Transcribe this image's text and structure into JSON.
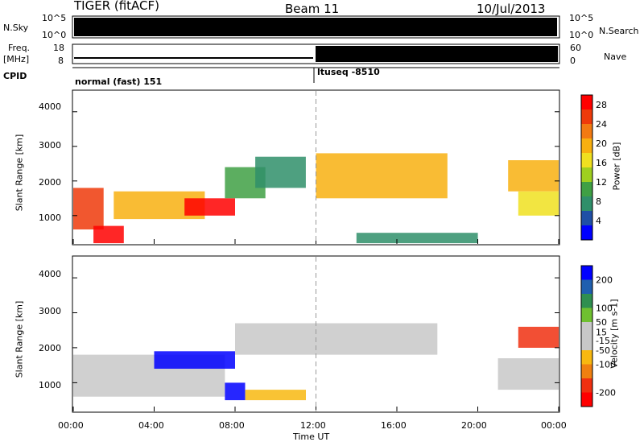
{
  "header": {
    "radar": "TIGER (fitACF)",
    "beam": "Beam 11",
    "date": "10/Jul/2013"
  },
  "top_labels": {
    "nsky": "N.Sky",
    "freq": "Freq.",
    "mhz": "[MHz]",
    "cpid": "CPID",
    "nsearch": "N.Search",
    "nave": "Nave",
    "noise_ticks_left": [
      "10^5",
      "10^0"
    ],
    "noise_ticks_right": [
      "10^5",
      "10^0"
    ],
    "freq_ticks": [
      "18",
      "8"
    ],
    "nave_ticks": [
      "60",
      "0"
    ],
    "cpid_first": "normal (fast) 151",
    "cpid_second": "ltuseq -8510"
  },
  "colors": {
    "power": [
      "#0000ff",
      "#1f4fa6",
      "#2f8f6a",
      "#3fa044",
      "#9fcf1f",
      "#f0e020",
      "#f8b010",
      "#f27a12",
      "#ee3a0a",
      "#ff0000"
    ],
    "velocity": [
      "#ff0000",
      "#f03010",
      "#f08010",
      "#f8b810",
      "#c8c8c8",
      "#c8c8c8",
      "#6fc030",
      "#2f8f50",
      "#1f5faf",
      "#0000ff"
    ]
  },
  "chart_data": [
    {
      "type": "heatmap",
      "name": "power",
      "title": "",
      "xlabel": "",
      "ylabel": "Slant Range [km]",
      "x_ticks": [
        "00:00",
        "04:00",
        "08:00",
        "12:00",
        "16:00",
        "20:00",
        "00:00"
      ],
      "x_range": [
        "00:00",
        "24:00"
      ],
      "y_ticks": [
        1000,
        2000,
        3000,
        4000
      ],
      "y_range": [
        180,
        4600
      ],
      "colorbar_label": "Power [dB]",
      "colorbar_ticks": [
        4,
        8,
        12,
        16,
        20,
        24,
        28
      ],
      "colorbar_range": [
        0,
        30
      ],
      "regions": [
        {
          "t": [
            0.0,
            1.5
          ],
          "r": [
            600,
            1800
          ],
          "v": 26
        },
        {
          "t": [
            1.0,
            2.5
          ],
          "r": [
            200,
            700
          ],
          "v": 28
        },
        {
          "t": [
            2.0,
            6.5
          ],
          "r": [
            900,
            1700
          ],
          "v": 18
        },
        {
          "t": [
            5.5,
            8.0
          ],
          "r": [
            1000,
            1500
          ],
          "v": 27
        },
        {
          "t": [
            7.5,
            9.5
          ],
          "r": [
            1500,
            2400
          ],
          "v": 10
        },
        {
          "t": [
            9.0,
            11.5
          ],
          "r": [
            1800,
            2700
          ],
          "v": 6
        },
        {
          "t": [
            12.0,
            18.5
          ],
          "r": [
            1500,
            2800
          ],
          "v": 18
        },
        {
          "t": [
            14.0,
            20.0
          ],
          "r": [
            200,
            500
          ],
          "v": 6
        },
        {
          "t": [
            21.5,
            24.0
          ],
          "r": [
            1700,
            2600
          ],
          "v": 20
        },
        {
          "t": [
            22.0,
            24.0
          ],
          "r": [
            1000,
            1700
          ],
          "v": 16
        }
      ]
    },
    {
      "type": "heatmap",
      "name": "velocity",
      "title": "",
      "xlabel": "Time UT",
      "ylabel": "Slant Range [km]",
      "x_ticks": [
        "00:00",
        "04:00",
        "08:00",
        "12:00",
        "16:00",
        "20:00",
        "00:00"
      ],
      "x_range": [
        "00:00",
        "24:00"
      ],
      "y_ticks": [
        1000,
        2000,
        3000,
        4000
      ],
      "y_range": [
        180,
        4600
      ],
      "colorbar_label": "Velocity [m s-1]",
      "colorbar_ticks": [
        200,
        100,
        50,
        15,
        -15,
        -50,
        -100,
        -200
      ],
      "colorbar_range": [
        -250,
        250
      ],
      "regions": [
        {
          "t": [
            0.0,
            7.5
          ],
          "r": [
            600,
            1800
          ],
          "v": 0
        },
        {
          "t": [
            4.0,
            8.0
          ],
          "r": [
            1400,
            1900
          ],
          "v": 200
        },
        {
          "t": [
            7.5,
            8.5
          ],
          "r": [
            500,
            1000
          ],
          "v": 200
        },
        {
          "t": [
            8.5,
            11.5
          ],
          "r": [
            500,
            800
          ],
          "v": -100
        },
        {
          "t": [
            8.0,
            18.0
          ],
          "r": [
            1800,
            2700
          ],
          "v": 0
        },
        {
          "t": [
            22.0,
            24.0
          ],
          "r": [
            2000,
            2600
          ],
          "v": -200
        },
        {
          "t": [
            21.0,
            24.0
          ],
          "r": [
            800,
            1700
          ],
          "v": 0
        }
      ]
    }
  ]
}
